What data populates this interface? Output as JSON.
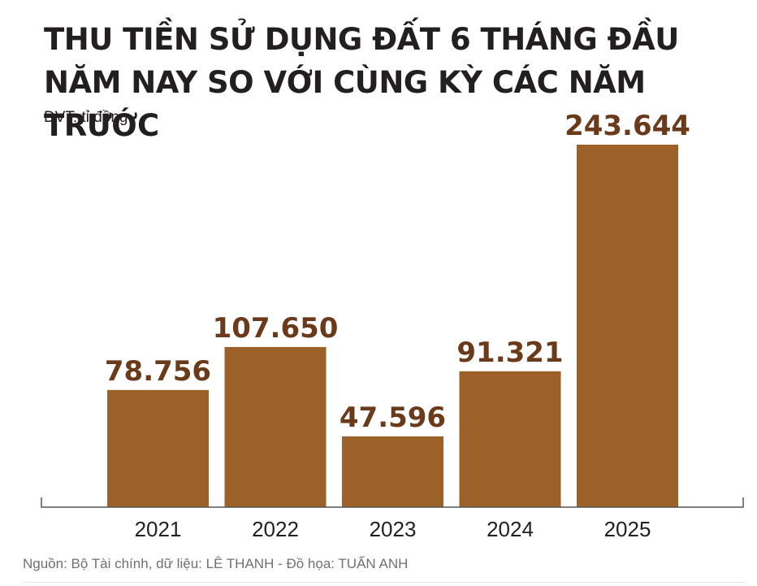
{
  "chart_data": {
    "type": "bar",
    "title": "THU TIỀN SỬ DỤNG ĐẤT 6 THÁNG ĐẦU NĂM NAY SO VỚI CÙNG KỲ CÁC NĂM TRƯỚC",
    "unit": "ĐVT: tỉ đồng",
    "categories": [
      "2021",
      "2022",
      "2023",
      "2024",
      "2025"
    ],
    "values": [
      78756,
      107650,
      47596,
      91321,
      243644
    ],
    "value_labels": [
      "78.756",
      "107.650",
      "47.596",
      "91.321",
      "243.644"
    ],
    "xlabel": "",
    "ylabel": "",
    "ylim": [
      0,
      243644
    ],
    "grid": false,
    "legend": "none",
    "colors": {
      "bar": "#9b6129",
      "value_label": "#6b3a1a",
      "title": "#231f20",
      "axis": "#555555",
      "tick_label": "#231f20"
    }
  },
  "source": "Nguồn: Bộ Tài chính, dữ liệu: LÊ THANH - Đồ họa: TUẤN ANH"
}
